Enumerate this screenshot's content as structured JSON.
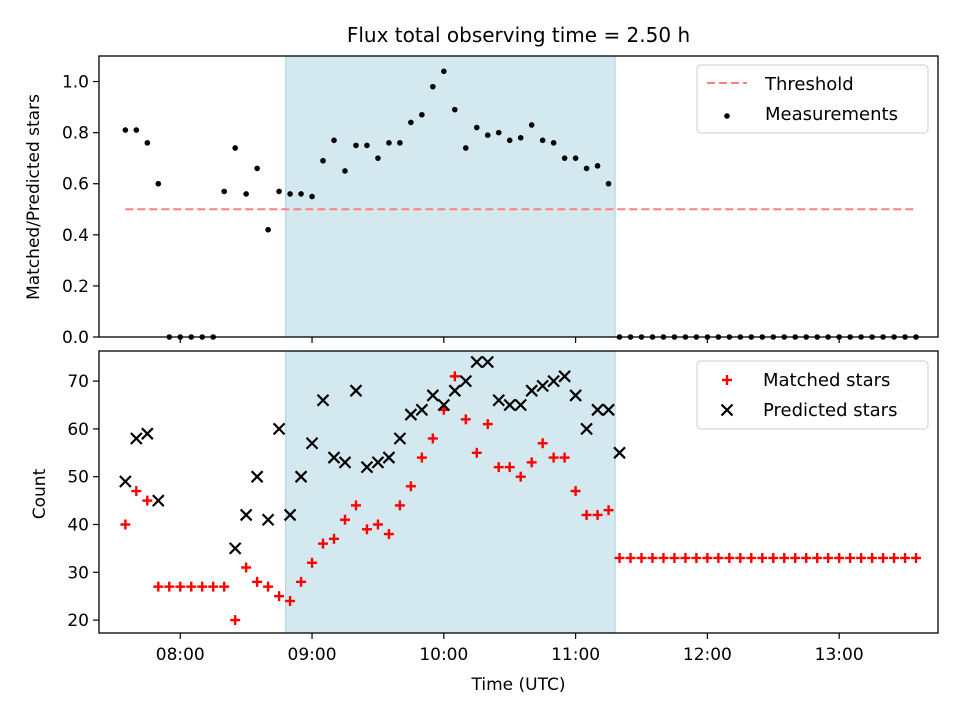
{
  "title": "Flux total observing time = 2.50 h",
  "colors": {
    "threshold": "#ff7f7f",
    "measurement": "#000000",
    "matched": "#ff0000",
    "predicted": "#000000",
    "window_fill": "#d3e9ef",
    "window_edge": "#a9d3de"
  },
  "chart_data": [
    {
      "type": "scatter",
      "ylabel": "Matched/Predicted stars",
      "ylim": [
        0,
        1.1
      ],
      "yticks": [
        0.0,
        0.2,
        0.4,
        0.6,
        0.8,
        1.0
      ],
      "ytick_labels": [
        "0.0",
        "0.2",
        "0.4",
        "0.6",
        "0.8",
        "1.0"
      ],
      "legend_position": "upper right",
      "legend": {
        "threshold": "Threshold",
        "measurements": "Measurements"
      },
      "threshold": {
        "y": 0.5,
        "x_start": "07:35",
        "x_end": "13:35"
      },
      "observing_window": [
        "08:48",
        "11:18"
      ],
      "x": [
        "07:35",
        "07:40",
        "07:45",
        "07:50",
        "07:55",
        "08:00",
        "08:05",
        "08:10",
        "08:15",
        "08:20",
        "08:25",
        "08:30",
        "08:35",
        "08:40",
        "08:45",
        "08:50",
        "08:55",
        "09:00",
        "09:05",
        "09:10",
        "09:15",
        "09:20",
        "09:25",
        "09:30",
        "09:35",
        "09:40",
        "09:45",
        "09:50",
        "09:55",
        "10:00",
        "10:05",
        "10:10",
        "10:15",
        "10:20",
        "10:25",
        "10:30",
        "10:35",
        "10:40",
        "10:45",
        "10:50",
        "10:55",
        "11:00",
        "11:05",
        "11:10",
        "11:15",
        "11:20",
        "11:25",
        "11:30",
        "11:35",
        "11:40",
        "11:45",
        "11:50",
        "11:55",
        "12:00",
        "12:05",
        "12:10",
        "12:15",
        "12:20",
        "12:25",
        "12:30",
        "12:35",
        "12:40",
        "12:45",
        "12:50",
        "12:55",
        "13:00",
        "13:05",
        "13:10",
        "13:15",
        "13:20",
        "13:25",
        "13:30",
        "13:35"
      ],
      "values": [
        0.81,
        0.81,
        0.76,
        0.6,
        0.0,
        0.0,
        0.0,
        0.0,
        0.0,
        0.57,
        0.74,
        0.56,
        0.66,
        0.42,
        0.57,
        0.56,
        0.56,
        0.55,
        0.69,
        0.77,
        0.65,
        0.75,
        0.75,
        0.7,
        0.76,
        0.76,
        0.84,
        0.87,
        0.98,
        1.04,
        0.89,
        0.74,
        0.82,
        0.79,
        0.8,
        0.77,
        0.78,
        0.83,
        0.77,
        0.76,
        0.7,
        0.7,
        0.66,
        0.67,
        0.6,
        0.0,
        0.0,
        0.0,
        0.0,
        0.0,
        0.0,
        0.0,
        0.0,
        0.0,
        0.0,
        0.0,
        0.0,
        0.0,
        0.0,
        0.0,
        0.0,
        0.0,
        0.0,
        0.0,
        0.0,
        0.0,
        0.0,
        0.0,
        0.0,
        0.0,
        0.0,
        0.0,
        0.0
      ]
    },
    {
      "type": "scatter",
      "ylabel": "Count",
      "xlabel": "Time (UTC)",
      "ylim": [
        17.3,
        76.3
      ],
      "yticks": [
        20,
        30,
        40,
        50,
        60,
        70
      ],
      "ytick_labels": [
        "20",
        "30",
        "40",
        "50",
        "60",
        "70"
      ],
      "xlim": [
        "07:23",
        "13:45"
      ],
      "xticks": [
        "08:00",
        "09:00",
        "10:00",
        "11:00",
        "12:00",
        "13:00"
      ],
      "xtick_labels": [
        "08:00",
        "09:00",
        "10:00",
        "11:00",
        "12:00",
        "13:00"
      ],
      "legend_position": "upper right",
      "observing_window": [
        "08:48",
        "11:18"
      ],
      "series": [
        {
          "name": "Matched stars",
          "marker": "plus",
          "points": [
            [
              "07:35",
              40
            ],
            [
              "07:40",
              47
            ],
            [
              "07:45",
              45
            ],
            [
              "07:50",
              27
            ],
            [
              "07:55",
              27
            ],
            [
              "08:00",
              27
            ],
            [
              "08:05",
              27
            ],
            [
              "08:10",
              27
            ],
            [
              "08:15",
              27
            ],
            [
              "08:20",
              27
            ],
            [
              "08:25",
              20
            ],
            [
              "08:30",
              31
            ],
            [
              "08:35",
              28
            ],
            [
              "08:40",
              27
            ],
            [
              "08:45",
              25
            ],
            [
              "08:50",
              24
            ],
            [
              "08:55",
              28
            ],
            [
              "09:00",
              32
            ],
            [
              "09:05",
              36
            ],
            [
              "09:10",
              37
            ],
            [
              "09:15",
              41
            ],
            [
              "09:20",
              44
            ],
            [
              "09:25",
              39
            ],
            [
              "09:30",
              40
            ],
            [
              "09:35",
              38
            ],
            [
              "09:40",
              44
            ],
            [
              "09:45",
              48
            ],
            [
              "09:50",
              54
            ],
            [
              "09:55",
              58
            ],
            [
              "10:00",
              64
            ],
            [
              "10:05",
              71
            ],
            [
              "10:10",
              62
            ],
            [
              "10:15",
              55
            ],
            [
              "10:20",
              61
            ],
            [
              "10:25",
              52
            ],
            [
              "10:30",
              52
            ],
            [
              "10:35",
              50
            ],
            [
              "10:40",
              53
            ],
            [
              "10:45",
              57
            ],
            [
              "10:50",
              54
            ],
            [
              "10:55",
              54
            ],
            [
              "11:00",
              47
            ],
            [
              "11:05",
              42
            ],
            [
              "11:10",
              42
            ],
            [
              "11:15",
              43
            ],
            [
              "11:20",
              33
            ],
            [
              "11:25",
              33
            ],
            [
              "11:30",
              33
            ],
            [
              "11:35",
              33
            ],
            [
              "11:40",
              33
            ],
            [
              "11:45",
              33
            ],
            [
              "11:50",
              33
            ],
            [
              "11:55",
              33
            ],
            [
              "12:00",
              33
            ],
            [
              "12:05",
              33
            ],
            [
              "12:10",
              33
            ],
            [
              "12:15",
              33
            ],
            [
              "12:20",
              33
            ],
            [
              "12:25",
              33
            ],
            [
              "12:30",
              33
            ],
            [
              "12:35",
              33
            ],
            [
              "12:40",
              33
            ],
            [
              "12:45",
              33
            ],
            [
              "12:50",
              33
            ],
            [
              "12:55",
              33
            ],
            [
              "13:00",
              33
            ],
            [
              "13:05",
              33
            ],
            [
              "13:10",
              33
            ],
            [
              "13:15",
              33
            ],
            [
              "13:20",
              33
            ],
            [
              "13:25",
              33
            ],
            [
              "13:30",
              33
            ],
            [
              "13:35",
              33
            ]
          ]
        },
        {
          "name": "Predicted stars",
          "marker": "x",
          "points": [
            [
              "07:35",
              49
            ],
            [
              "07:40",
              58
            ],
            [
              "07:45",
              59
            ],
            [
              "07:50",
              45
            ],
            [
              "08:25",
              35
            ],
            [
              "08:30",
              42
            ],
            [
              "08:35",
              50
            ],
            [
              "08:40",
              41
            ],
            [
              "08:45",
              60
            ],
            [
              "08:50",
              42
            ],
            [
              "08:55",
              50
            ],
            [
              "09:00",
              57
            ],
            [
              "09:05",
              66
            ],
            [
              "09:10",
              54
            ],
            [
              "09:15",
              53
            ],
            [
              "09:20",
              68
            ],
            [
              "09:25",
              52
            ],
            [
              "09:30",
              53
            ],
            [
              "09:35",
              54
            ],
            [
              "09:40",
              58
            ],
            [
              "09:45",
              63
            ],
            [
              "09:50",
              64
            ],
            [
              "09:55",
              67
            ],
            [
              "10:00",
              65
            ],
            [
              "10:05",
              68
            ],
            [
              "10:10",
              70
            ],
            [
              "10:15",
              74
            ],
            [
              "10:20",
              74
            ],
            [
              "10:25",
              66
            ],
            [
              "10:30",
              65
            ],
            [
              "10:35",
              65
            ],
            [
              "10:40",
              68
            ],
            [
              "10:45",
              69
            ],
            [
              "10:50",
              70
            ],
            [
              "10:55",
              71
            ],
            [
              "11:00",
              67
            ],
            [
              "11:05",
              60
            ],
            [
              "11:10",
              64
            ],
            [
              "11:15",
              64
            ],
            [
              "11:20",
              55
            ]
          ]
        }
      ]
    }
  ]
}
